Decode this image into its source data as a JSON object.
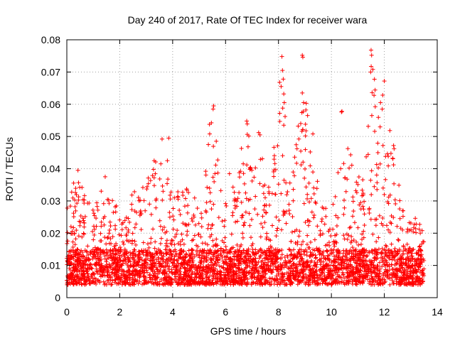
{
  "chart_data": {
    "type": "scatter",
    "title": "Day 240 of 2017, Rate Of TEC Index for receiver wara",
    "xlabel": "GPS time / hours",
    "ylabel": "ROTI / TECUs",
    "xlim": [
      0,
      14
    ],
    "ylim": [
      0,
      0.08
    ],
    "xticks": [
      "0",
      "2",
      "4",
      "6",
      "8",
      "10",
      "12",
      "14"
    ],
    "yticks": [
      "0",
      "0.01",
      "0.02",
      "0.03",
      "0.04",
      "0.05",
      "0.06",
      "0.07",
      "0.08"
    ],
    "grid": true,
    "marker": "+",
    "color": "#ff0000",
    "x_extent_hours": [
      0,
      13.5
    ],
    "baseline_band": [
      0.004,
      0.015
    ],
    "envelope": [
      {
        "x": 0.0,
        "max": 0.035
      },
      {
        "x": 0.4,
        "max": 0.039
      },
      {
        "x": 1.0,
        "max": 0.029
      },
      {
        "x": 1.4,
        "max": 0.037
      },
      {
        "x": 2.0,
        "max": 0.029
      },
      {
        "x": 2.6,
        "max": 0.036
      },
      {
        "x": 3.0,
        "max": 0.039
      },
      {
        "x": 3.6,
        "max": 0.049
      },
      {
        "x": 4.0,
        "max": 0.034
      },
      {
        "x": 4.6,
        "max": 0.036
      },
      {
        "x": 5.0,
        "max": 0.031
      },
      {
        "x": 5.4,
        "max": 0.059
      },
      {
        "x": 6.0,
        "max": 0.04
      },
      {
        "x": 6.5,
        "max": 0.045
      },
      {
        "x": 6.8,
        "max": 0.055
      },
      {
        "x": 7.3,
        "max": 0.051
      },
      {
        "x": 7.6,
        "max": 0.036
      },
      {
        "x": 8.1,
        "max": 0.075
      },
      {
        "x": 8.5,
        "max": 0.036
      },
      {
        "x": 8.9,
        "max": 0.075
      },
      {
        "x": 9.2,
        "max": 0.051
      },
      {
        "x": 9.6,
        "max": 0.033
      },
      {
        "x": 10.0,
        "max": 0.026
      },
      {
        "x": 10.4,
        "max": 0.058
      },
      {
        "x": 10.8,
        "max": 0.044
      },
      {
        "x": 11.2,
        "max": 0.04
      },
      {
        "x": 11.5,
        "max": 0.077
      },
      {
        "x": 12.0,
        "max": 0.067
      },
      {
        "x": 12.4,
        "max": 0.047
      },
      {
        "x": 12.8,
        "max": 0.023
      },
      {
        "x": 13.2,
        "max": 0.027
      },
      {
        "x": 13.5,
        "max": 0.022
      }
    ],
    "outliers": [
      {
        "x": 8.13,
        "y": 0.0748
      },
      {
        "x": 8.15,
        "y": 0.0705
      },
      {
        "x": 8.18,
        "y": 0.0678
      },
      {
        "x": 8.1,
        "y": 0.0655
      },
      {
        "x": 8.2,
        "y": 0.0632
      },
      {
        "x": 8.22,
        "y": 0.0605
      },
      {
        "x": 8.16,
        "y": 0.0588
      },
      {
        "x": 8.25,
        "y": 0.0562
      },
      {
        "x": 8.2,
        "y": 0.0535
      },
      {
        "x": 8.9,
        "y": 0.0752
      },
      {
        "x": 8.92,
        "y": 0.0746
      },
      {
        "x": 8.9,
        "y": 0.0635
      },
      {
        "x": 8.95,
        "y": 0.0605
      },
      {
        "x": 9.05,
        "y": 0.0603
      },
      {
        "x": 9.1,
        "y": 0.0565
      },
      {
        "x": 9.02,
        "y": 0.0538
      },
      {
        "x": 9.3,
        "y": 0.0508
      },
      {
        "x": 11.5,
        "y": 0.0768
      },
      {
        "x": 11.52,
        "y": 0.0752
      },
      {
        "x": 12.0,
        "y": 0.0672
      },
      {
        "x": 10.4,
        "y": 0.0578
      },
      {
        "x": 10.38,
        "y": 0.0576
      },
      {
        "x": 5.55,
        "y": 0.0595
      },
      {
        "x": 5.53,
        "y": 0.0585
      },
      {
        "x": 6.8,
        "y": 0.0548
      },
      {
        "x": 6.82,
        "y": 0.0539
      },
      {
        "x": 7.25,
        "y": 0.0512
      },
      {
        "x": 7.3,
        "y": 0.0505
      },
      {
        "x": 3.6,
        "y": 0.0492
      },
      {
        "x": 3.85,
        "y": 0.0495
      },
      {
        "x": 5.4,
        "y": 0.0508
      },
      {
        "x": 5.35,
        "y": 0.0475
      },
      {
        "x": 11.95,
        "y": 0.0472
      },
      {
        "x": 12.35,
        "y": 0.0472
      },
      {
        "x": 12.37,
        "y": 0.0462
      },
      {
        "x": 9.2,
        "y": 0.0452
      },
      {
        "x": 8.7,
        "y": 0.0462
      },
      {
        "x": 6.6,
        "y": 0.0463
      },
      {
        "x": 6.85,
        "y": 0.0468
      },
      {
        "x": 12.35,
        "y": 0.0412
      },
      {
        "x": 10.35,
        "y": 0.04
      },
      {
        "x": 0.42,
        "y": 0.0395
      },
      {
        "x": 1.45,
        "y": 0.0375
      },
      {
        "x": 3.3,
        "y": 0.0425
      },
      {
        "x": 3.8,
        "y": 0.0425
      }
    ]
  }
}
